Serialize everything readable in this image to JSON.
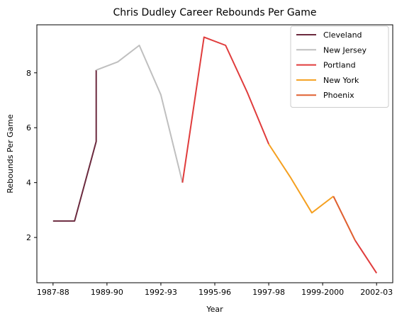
{
  "chart_data": {
    "type": "line",
    "title": "Chris Dudley Career Rebounds Per Game",
    "xlabel": "Year",
    "ylabel": "Rebounds Per Game",
    "x_ticks": [
      "1987-88",
      "1989-90",
      "1992-93",
      "1995-96",
      "1997-98",
      "1999-2000",
      "2002-03"
    ],
    "x_tick_index": [
      0,
      2.5,
      5,
      7.5,
      10,
      12.5,
      15
    ],
    "xlim": [
      -0.75,
      15.75
    ],
    "y_ticks": [
      2,
      4,
      6,
      8
    ],
    "ylim": [
      0.35,
      9.75
    ],
    "grid": false,
    "legend_position": "top-right",
    "series": [
      {
        "name": "Cleveland",
        "color": "#6b2a3e",
        "points": [
          [
            0,
            2.6
          ],
          [
            1,
            2.6
          ],
          [
            2,
            5.5
          ],
          [
            2,
            8.1
          ]
        ]
      },
      {
        "name": "New Jersey",
        "color": "#bfbfbf",
        "points": [
          [
            2,
            8.1
          ],
          [
            3,
            8.4
          ],
          [
            4,
            9.0
          ],
          [
            5,
            7.2
          ],
          [
            6,
            4.0
          ]
        ]
      },
      {
        "name": "Portland",
        "color": "#e03c3c",
        "points": [
          [
            6,
            4.0
          ],
          [
            7,
            9.3
          ],
          [
            8,
            9.0
          ],
          [
            9,
            7.3
          ],
          [
            10,
            5.4
          ]
        ]
      },
      {
        "name": "New York",
        "color": "#f5a020",
        "points": [
          [
            10,
            5.4
          ],
          [
            11,
            4.2
          ],
          [
            12,
            2.9
          ],
          [
            13,
            3.5
          ]
        ]
      },
      {
        "name": "Phoenix",
        "color": "#e06030",
        "points": [
          [
            13,
            3.5
          ],
          [
            14,
            1.9
          ]
        ]
      },
      {
        "name": "",
        "color": "#e03c3c",
        "points": [
          [
            14,
            1.9
          ],
          [
            15,
            0.7
          ]
        ]
      }
    ]
  }
}
